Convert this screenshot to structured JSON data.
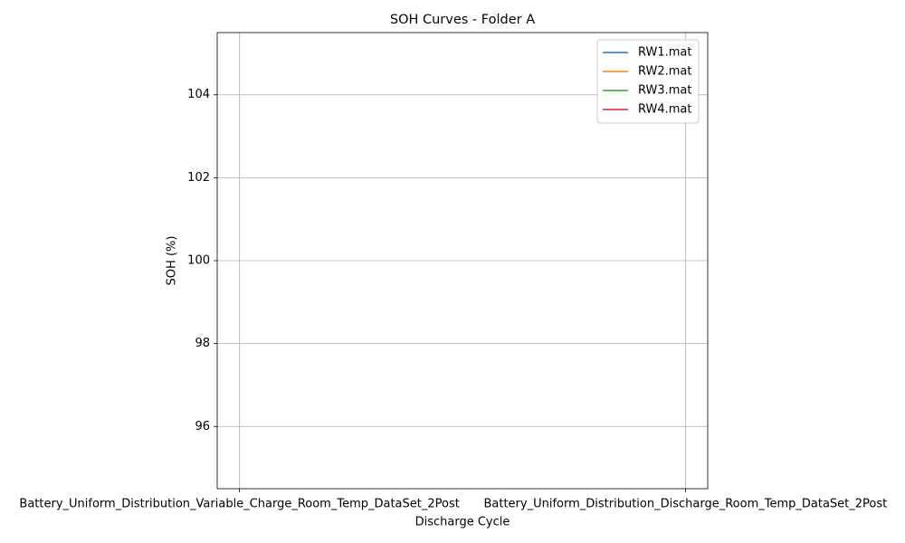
{
  "chart_data": {
    "type": "line",
    "title": "SOH Curves - Folder A",
    "xlabel": "Discharge Cycle",
    "ylabel": "SOH (%)",
    "categories": [
      "Battery_Uniform_Distribution_Variable_Charge_Room_Temp_DataSet_2Post",
      "Battery_Uniform_Distribution_Discharge_Room_Temp_DataSet_2Post"
    ],
    "xlim": [
      -0.05,
      1.05
    ],
    "series": [
      {
        "name": "RW1.mat",
        "color": "#1f77b4",
        "values": [
          null,
          null
        ]
      },
      {
        "name": "RW2.mat",
        "color": "#ff7f0e",
        "values": [
          null,
          null
        ]
      },
      {
        "name": "RW3.mat",
        "color": "#2ca02c",
        "values": [
          null,
          null
        ]
      },
      {
        "name": "RW4.mat",
        "color": "#d62728",
        "values": [
          null,
          null
        ]
      }
    ],
    "ylim": [
      94.5,
      105.5
    ],
    "yticks": [
      96,
      98,
      100,
      102,
      104
    ],
    "grid": true,
    "legend": "upper right"
  }
}
